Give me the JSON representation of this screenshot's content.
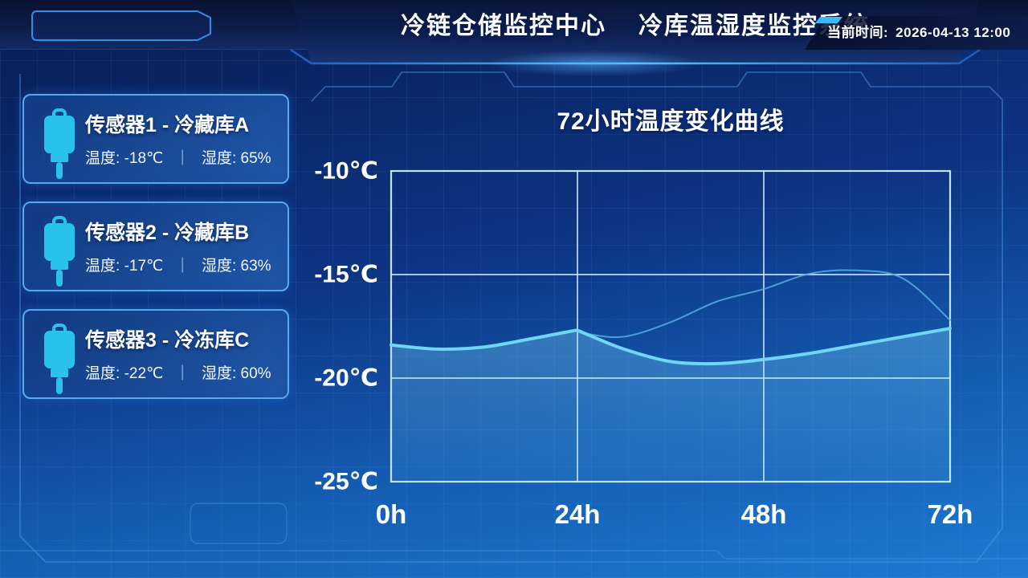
{
  "header": {
    "title_part1": "冷链仓储监控中心",
    "title_part2": "冷库温湿度监控系统",
    "time_label": "当前时间:",
    "time_value": "2026-04-13 12:00"
  },
  "sidebar": {
    "labels": {
      "temperature": "温度:",
      "humidity": "湿度:",
      "divider": "｜"
    },
    "sensors": [
      {
        "name": "传感器1 - 冷藏库A",
        "temperature": "-18℃",
        "humidity": "65%"
      },
      {
        "name": "传感器2 - 冷藏库B",
        "temperature": "-17℃",
        "humidity": "63%"
      },
      {
        "name": "传感器3 - 冷冻库C",
        "temperature": "-22℃",
        "humidity": "60%"
      }
    ],
    "icon": "sensor-probe-icon"
  },
  "colors": {
    "accent_cyan": "#29c3ea",
    "grid_line": "#cdeefb",
    "curve_main": "#6fd6f5",
    "curve_secondary": "#55b0e0",
    "card_border": "#58a9e8"
  },
  "chart_data": {
    "type": "line",
    "title": "72小时温度变化曲线",
    "xlabel": "",
    "ylabel": "",
    "xlim": [
      0,
      72
    ],
    "ylim": [
      -25,
      -10
    ],
    "grid": true,
    "legend": "none",
    "x_ticks": [
      "0h",
      "24h",
      "48h",
      "72h"
    ],
    "x_tick_values": [
      0,
      24,
      48,
      72
    ],
    "y_ticks": [
      "-10℃",
      "-15℃",
      "-20℃",
      "-25℃"
    ],
    "y_tick_values": [
      -10,
      -15,
      -20,
      -25
    ],
    "x": [
      0,
      6,
      12,
      18,
      23,
      24,
      25,
      30,
      36,
      42,
      48,
      54,
      60,
      66,
      72
    ],
    "series": [
      {
        "name": "secondary-temperature-curve",
        "color": "#55b0e0",
        "width": 2,
        "opacity": 0.85,
        "area_fill": false,
        "values": [
          -18.4,
          -18.6,
          -18.5,
          -18.1,
          -17.75,
          -17.7,
          -17.85,
          -18.0,
          -17.3,
          -16.3,
          -15.7,
          -14.95,
          -14.8,
          -15.2,
          -17.2
        ]
      },
      {
        "name": "main-temperature-curve",
        "color": "#6fd6f5",
        "width": 4,
        "opacity": 1,
        "area_fill": true,
        "values": [
          -18.4,
          -18.6,
          -18.5,
          -18.1,
          -17.75,
          -17.7,
          -17.85,
          -18.6,
          -19.2,
          -19.3,
          -19.1,
          -18.8,
          -18.4,
          -18.0,
          -17.6
        ]
      }
    ]
  }
}
